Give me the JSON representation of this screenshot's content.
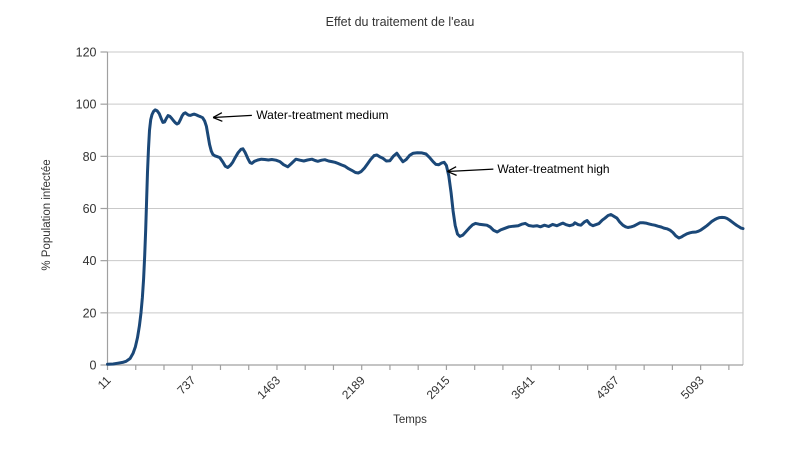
{
  "chart_data": {
    "type": "line",
    "title": "Effet du traitement de l'eau",
    "xlabel": "Temps",
    "ylabel": "% Population infectée",
    "xlim": [
      11,
      5456
    ],
    "ylim": [
      0,
      120
    ],
    "y_ticks": [
      0,
      20,
      40,
      60,
      80,
      100,
      120
    ],
    "x_tick_labels": [
      "11",
      "737",
      "1463",
      "2189",
      "2915",
      "3641",
      "4367",
      "5093"
    ],
    "minor_tick_step": 242,
    "labeled_every_n_ticks": 3,
    "grid": "horizontal",
    "legend": "none",
    "colors": {
      "line": "#1b4878",
      "grid": "#c9c9c9",
      "axis": "#a0a0a0",
      "text": "#333333",
      "annotation": "#000000",
      "background": "#ffffff"
    },
    "annotations": [
      {
        "text": "Water-treatment medium",
        "arrow_tip": [
          916,
          94.9
        ],
        "arrow_tail": [
          1248,
          95.7
        ],
        "text_xy": [
          1286,
          94.3
        ]
      },
      {
        "text": "Water-treatment high",
        "arrow_tip": [
          2923,
          74.2
        ],
        "arrow_tail": [
          3317,
          75.1
        ],
        "text_xy": [
          3351,
          73.7
        ]
      }
    ],
    "series": [
      {
        "points": [
          [
            11,
            0.3
          ],
          [
            60,
            0.4
          ],
          [
            100,
            0.7
          ],
          [
            140,
            1.0
          ],
          [
            170,
            1.4
          ],
          [
            205,
            2.5
          ],
          [
            230,
            4.5
          ],
          [
            250,
            7.0
          ],
          [
            268,
            10.5
          ],
          [
            284,
            15
          ],
          [
            298,
            20
          ],
          [
            310,
            26
          ],
          [
            320,
            33
          ],
          [
            330,
            42
          ],
          [
            338,
            52
          ],
          [
            346,
            63
          ],
          [
            354,
            74
          ],
          [
            362,
            83
          ],
          [
            371,
            90
          ],
          [
            381,
            94
          ],
          [
            392,
            96
          ],
          [
            405,
            97.2
          ],
          [
            420,
            97.8
          ],
          [
            437,
            97.4
          ],
          [
            455,
            96.3
          ],
          [
            472,
            94.4
          ],
          [
            486,
            93
          ],
          [
            500,
            93.2
          ],
          [
            516,
            94.6
          ],
          [
            530,
            95.6
          ],
          [
            546,
            95.3
          ],
          [
            562,
            94.5
          ],
          [
            578,
            93.6
          ],
          [
            592,
            92.9
          ],
          [
            606,
            92.4
          ],
          [
            620,
            92.7
          ],
          [
            634,
            93.9
          ],
          [
            650,
            95.5
          ],
          [
            664,
            96.4
          ],
          [
            678,
            96.7
          ],
          [
            692,
            96.2
          ],
          [
            706,
            95.8
          ],
          [
            722,
            95.7
          ],
          [
            738,
            96
          ],
          [
            755,
            96.2
          ],
          [
            772,
            95.9
          ],
          [
            790,
            95.5
          ],
          [
            808,
            95.2
          ],
          [
            826,
            94.8
          ],
          [
            844,
            93.5
          ],
          [
            858,
            91.5
          ],
          [
            872,
            88
          ],
          [
            886,
            84.5
          ],
          [
            900,
            82
          ],
          [
            914,
            80.7
          ],
          [
            930,
            80.2
          ],
          [
            950,
            79.9
          ],
          [
            973,
            79.5
          ],
          [
            1000,
            77.8
          ],
          [
            1020,
            76.2
          ],
          [
            1042,
            75.7
          ],
          [
            1065,
            76.6
          ],
          [
            1085,
            77.8
          ],
          [
            1105,
            79.5
          ],
          [
            1130,
            81.4
          ],
          [
            1155,
            82.7
          ],
          [
            1171,
            82.9
          ],
          [
            1190,
            81.5
          ],
          [
            1213,
            79.2
          ],
          [
            1232,
            77.6
          ],
          [
            1248,
            77.3
          ],
          [
            1270,
            78.1
          ],
          [
            1299,
            78.6
          ],
          [
            1330,
            78.9
          ],
          [
            1359,
            78.8
          ],
          [
            1390,
            78.6
          ],
          [
            1419,
            78.8
          ],
          [
            1455,
            78.5
          ],
          [
            1488,
            78
          ],
          [
            1520,
            76.8
          ],
          [
            1556,
            76
          ],
          [
            1590,
            77.4
          ],
          [
            1625,
            78.9
          ],
          [
            1660,
            78.5
          ],
          [
            1693,
            78.2
          ],
          [
            1725,
            78.6
          ],
          [
            1762,
            78.9
          ],
          [
            1790,
            78.4
          ],
          [
            1813,
            78.1
          ],
          [
            1845,
            78.5
          ],
          [
            1873,
            78.7
          ],
          [
            1905,
            78.2
          ],
          [
            1933,
            78
          ],
          [
            1960,
            77.7
          ],
          [
            1985,
            77.3
          ],
          [
            2015,
            76.7
          ],
          [
            2045,
            76.2
          ],
          [
            2075,
            75.3
          ],
          [
            2105,
            74.6
          ],
          [
            2135,
            73.8
          ],
          [
            2160,
            73.6
          ],
          [
            2185,
            74.2
          ],
          [
            2215,
            75.6
          ],
          [
            2240,
            77.2
          ],
          [
            2265,
            78.8
          ],
          [
            2295,
            80.3
          ],
          [
            2319,
            80.5
          ],
          [
            2345,
            79.8
          ],
          [
            2370,
            79.3
          ],
          [
            2400,
            78.2
          ],
          [
            2430,
            78.3
          ],
          [
            2460,
            80
          ],
          [
            2490,
            81.2
          ],
          [
            2515,
            79.6
          ],
          [
            2542,
            77.9
          ],
          [
            2570,
            78.8
          ],
          [
            2600,
            80.4
          ],
          [
            2630,
            81.2
          ],
          [
            2665,
            81.4
          ],
          [
            2705,
            81.3
          ],
          [
            2740,
            80.9
          ],
          [
            2770,
            79.6
          ],
          [
            2800,
            78
          ],
          [
            2825,
            76.9
          ],
          [
            2850,
            76.8
          ],
          [
            2875,
            77.5
          ],
          [
            2895,
            77.7
          ],
          [
            2915,
            76.5
          ],
          [
            2935,
            72.5
          ],
          [
            2955,
            66
          ],
          [
            2972,
            59
          ],
          [
            2990,
            53.5
          ],
          [
            3010,
            50.2
          ],
          [
            3030,
            49.3
          ],
          [
            3055,
            49.8
          ],
          [
            3080,
            51
          ],
          [
            3110,
            52.5
          ],
          [
            3140,
            53.8
          ],
          [
            3165,
            54.3
          ],
          [
            3195,
            54
          ],
          [
            3230,
            53.8
          ],
          [
            3262,
            53.6
          ],
          [
            3290,
            52.9
          ],
          [
            3320,
            51.6
          ],
          [
            3350,
            51
          ],
          [
            3380,
            51.8
          ],
          [
            3416,
            52.4
          ],
          [
            3450,
            53
          ],
          [
            3490,
            53.2
          ],
          [
            3530,
            53.4
          ],
          [
            3560,
            54
          ],
          [
            3590,
            54.3
          ],
          [
            3620,
            53.5
          ],
          [
            3656,
            53.2
          ],
          [
            3690,
            53.4
          ],
          [
            3720,
            53
          ],
          [
            3755,
            53.6
          ],
          [
            3790,
            53.1
          ],
          [
            3825,
            53.9
          ],
          [
            3861,
            53.4
          ],
          [
            3890,
            54
          ],
          [
            3913,
            54.4
          ],
          [
            3940,
            53.8
          ],
          [
            3970,
            53.4
          ],
          [
            4000,
            53.8
          ],
          [
            4016,
            54.5
          ],
          [
            4045,
            53.8
          ],
          [
            4067,
            53.6
          ],
          [
            4095,
            54.8
          ],
          [
            4119,
            55.4
          ],
          [
            4145,
            54
          ],
          [
            4170,
            53.4
          ],
          [
            4195,
            53.8
          ],
          [
            4221,
            54.2
          ],
          [
            4250,
            55.5
          ],
          [
            4273,
            56.3
          ],
          [
            4300,
            57.3
          ],
          [
            4324,
            57.7
          ],
          [
            4350,
            57
          ],
          [
            4376,
            56.3
          ],
          [
            4400,
            54.8
          ],
          [
            4427,
            53.6
          ],
          [
            4450,
            53
          ],
          [
            4470,
            52.7
          ],
          [
            4500,
            53
          ],
          [
            4521,
            53.3
          ],
          [
            4550,
            54
          ],
          [
            4573,
            54.5
          ],
          [
            4600,
            54.5
          ],
          [
            4624,
            54.4
          ],
          [
            4650,
            54.1
          ],
          [
            4676,
            53.8
          ],
          [
            4700,
            53.6
          ],
          [
            4727,
            53.2
          ],
          [
            4755,
            52.9
          ],
          [
            4778,
            52.5
          ],
          [
            4805,
            52.2
          ],
          [
            4830,
            51.7
          ],
          [
            4855,
            50.8
          ],
          [
            4880,
            49.5
          ],
          [
            4907,
            48.7
          ],
          [
            4930,
            49.1
          ],
          [
            4950,
            49.7
          ],
          [
            4975,
            50.3
          ],
          [
            5001,
            50.7
          ],
          [
            5025,
            50.9
          ],
          [
            5053,
            51
          ],
          [
            5075,
            51.3
          ],
          [
            5096,
            51.8
          ],
          [
            5125,
            52.7
          ],
          [
            5147,
            53.4
          ],
          [
            5170,
            54.3
          ],
          [
            5190,
            55.1
          ],
          [
            5215,
            55.8
          ],
          [
            5233,
            56.2
          ],
          [
            5255,
            56.5
          ],
          [
            5276,
            56.6
          ],
          [
            5300,
            56.5
          ],
          [
            5318,
            56.2
          ],
          [
            5340,
            55.6
          ],
          [
            5361,
            54.9
          ],
          [
            5385,
            54.1
          ],
          [
            5404,
            53.5
          ],
          [
            5425,
            52.9
          ],
          [
            5440,
            52.5
          ],
          [
            5456,
            52.3
          ]
        ]
      }
    ]
  }
}
